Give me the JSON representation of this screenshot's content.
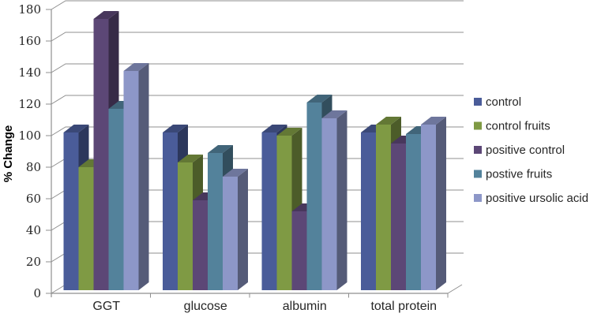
{
  "chart_data": {
    "type": "bar",
    "style": "3d-column",
    "title": "",
    "xlabel": "",
    "ylabel": "% Change",
    "categories": [
      "GGT",
      "glucose",
      "albumin",
      "total protein"
    ],
    "series": [
      {
        "name": "control",
        "color": "#4a5c99",
        "values": [
          100,
          100,
          100,
          100
        ]
      },
      {
        "name": "control fruits",
        "color": "#7f9a44",
        "values": [
          78,
          81,
          98,
          105
        ]
      },
      {
        "name": "positive control",
        "color": "#5c4776",
        "values": [
          172,
          57,
          50,
          93
        ]
      },
      {
        "name": "postive fruits",
        "color": "#53829b",
        "values": [
          115,
          87,
          119,
          99
        ]
      },
      {
        "name": "positive ursolic acid",
        "color": "#8d97c8",
        "values": [
          139,
          72,
          109,
          105
        ]
      }
    ],
    "ylim": [
      0,
      180
    ],
    "ytick_step": 20,
    "grid": true,
    "legend_position": "right",
    "axis_color": "#8f8f8f",
    "text_color": "#262626"
  }
}
